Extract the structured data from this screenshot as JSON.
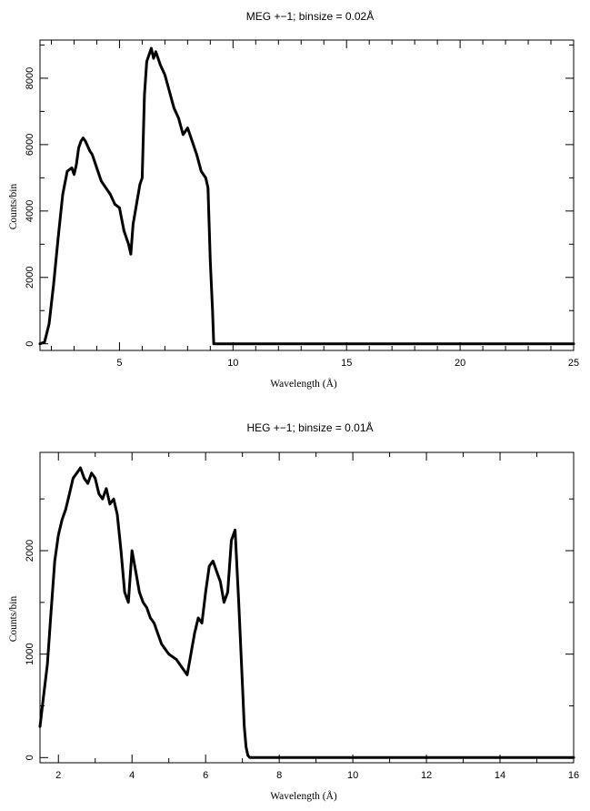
{
  "chart_data": [
    {
      "type": "line",
      "title": "MEG +−1; binsize = 0.02Å",
      "xlabel": "Wavelength (Å)",
      "ylabel": "Counts/bin",
      "xlim": [
        1.5,
        25
      ],
      "ylim": [
        -200,
        9150
      ],
      "xticks": [
        5,
        10,
        15,
        20,
        25
      ],
      "xminor": [
        2,
        3,
        4,
        6,
        7,
        8,
        9,
        11,
        12,
        13,
        14,
        16,
        17,
        18,
        19,
        21,
        22,
        23,
        24
      ],
      "yticks": [
        0,
        2000,
        4000,
        6000,
        8000
      ],
      "yminor": [
        1000,
        3000,
        5000,
        7000,
        9000
      ],
      "series": [
        {
          "x": [
            1.5,
            1.7,
            1.9,
            2.1,
            2.3,
            2.5,
            2.7,
            2.9,
            3.0,
            3.1,
            3.2,
            3.3,
            3.4,
            3.5,
            3.7,
            3.8,
            4.0,
            4.2,
            4.4,
            4.6,
            4.8,
            5.0,
            5.2,
            5.4,
            5.5,
            5.6,
            5.7,
            5.9,
            6.0,
            6.1,
            6.2,
            6.4,
            6.5,
            6.6,
            6.8,
            7.0,
            7.2,
            7.4,
            7.6,
            7.8,
            8.0,
            8.2,
            8.4,
            8.6,
            8.8,
            8.9,
            9.0,
            9.1,
            9.15,
            10,
            12,
            15,
            18,
            20,
            22,
            25
          ],
          "y": [
            0,
            50,
            600,
            1800,
            3200,
            4500,
            5200,
            5300,
            5100,
            5400,
            5900,
            6100,
            6200,
            6100,
            5800,
            5700,
            5300,
            4900,
            4700,
            4500,
            4200,
            4100,
            3400,
            3000,
            2700,
            3600,
            4000,
            4800,
            5000,
            7500,
            8500,
            8900,
            8600,
            8800,
            8400,
            8100,
            7600,
            7100,
            6800,
            6300,
            6500,
            6100,
            5700,
            5200,
            5000,
            4700,
            2500,
            1000,
            0,
            0,
            0,
            0,
            0,
            0,
            0,
            0
          ]
        }
      ]
    },
    {
      "type": "line",
      "title": "HEG +−1; binsize = 0.01Å",
      "xlabel": "Wavelength (Å)",
      "ylabel": "Counts/bin",
      "xlim": [
        1.5,
        16
      ],
      "ylim": [
        -50,
        2950
      ],
      "xticks": [
        2,
        4,
        6,
        8,
        10,
        12,
        14,
        16
      ],
      "xminor": [
        3,
        5,
        7,
        9,
        11,
        13,
        15
      ],
      "yticks": [
        0,
        1000,
        2000
      ],
      "yminor": [
        500,
        1500,
        2500
      ],
      "series": [
        {
          "x": [
            1.5,
            1.55,
            1.6,
            1.7,
            1.8,
            1.9,
            2.0,
            2.1,
            2.2,
            2.3,
            2.4,
            2.5,
            2.6,
            2.7,
            2.8,
            2.9,
            3.0,
            3.1,
            3.2,
            3.3,
            3.4,
            3.5,
            3.6,
            3.7,
            3.8,
            3.9,
            4.0,
            4.1,
            4.2,
            4.3,
            4.4,
            4.5,
            4.6,
            4.7,
            4.8,
            4.9,
            5.0,
            5.2,
            5.4,
            5.5,
            5.6,
            5.7,
            5.8,
            5.9,
            6.0,
            6.1,
            6.2,
            6.3,
            6.4,
            6.5,
            6.6,
            6.7,
            6.8,
            6.9,
            7.0,
            7.05,
            7.1,
            7.15,
            7.2,
            8,
            10,
            12,
            14,
            16
          ],
          "y": [
            300,
            450,
            600,
            900,
            1400,
            1900,
            2150,
            2300,
            2400,
            2550,
            2700,
            2750,
            2800,
            2700,
            2650,
            2750,
            2700,
            2550,
            2500,
            2600,
            2450,
            2500,
            2350,
            2000,
            1600,
            1500,
            2000,
            1800,
            1600,
            1500,
            1450,
            1350,
            1300,
            1200,
            1100,
            1050,
            1000,
            950,
            850,
            800,
            1000,
            1200,
            1350,
            1300,
            1600,
            1850,
            1900,
            1800,
            1700,
            1500,
            1600,
            2100,
            2200,
            1500,
            700,
            300,
            100,
            20,
            0,
            0,
            0,
            0,
            0,
            0
          ]
        }
      ]
    }
  ]
}
